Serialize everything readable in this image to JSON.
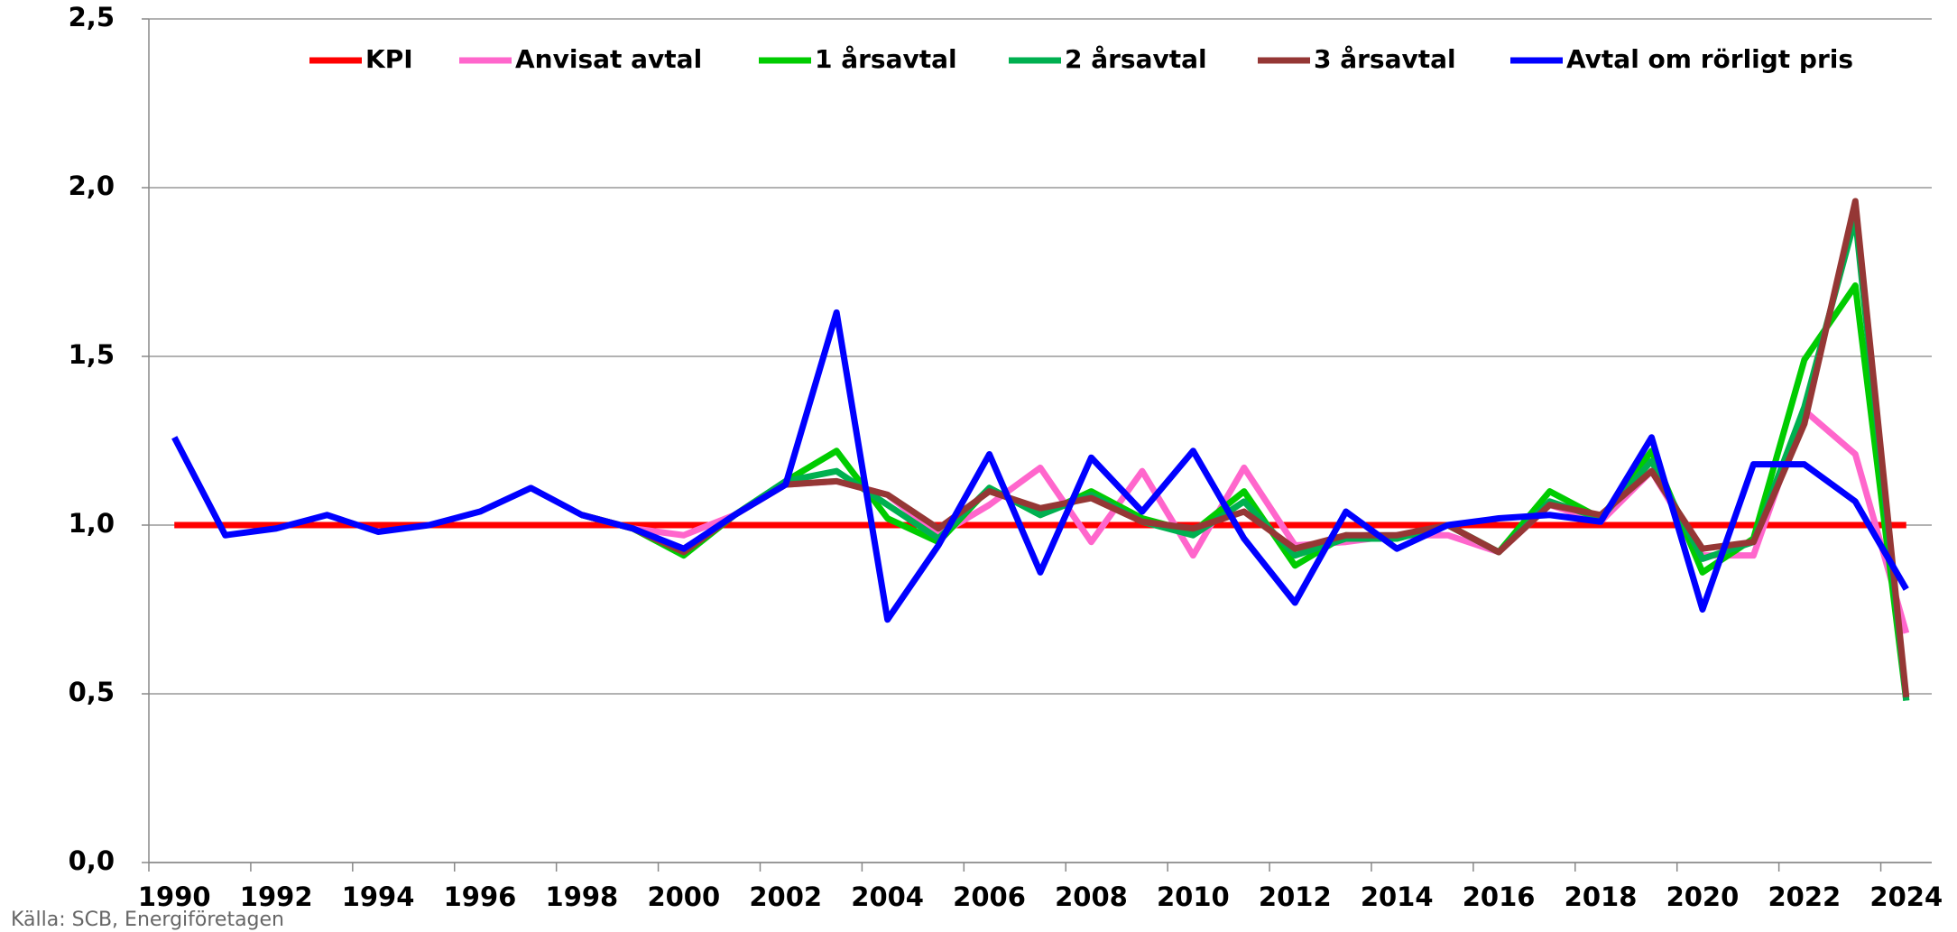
{
  "chart_data": {
    "type": "line",
    "source": "Källa: SCB, Energiföretagen",
    "categories": [
      1990,
      null,
      1992,
      null,
      1994,
      null,
      1996,
      null,
      1998,
      null,
      2000,
      null,
      2002,
      null,
      2004,
      null,
      2006,
      null,
      2008,
      null,
      2010,
      null,
      2012,
      null,
      2014,
      null,
      2016,
      null,
      2018,
      null,
      2020,
      null,
      2022,
      null,
      2024
    ],
    "series": [
      {
        "name": "KPI",
        "color": "#ff0000",
        "values": [
          1.0,
          1.0,
          1.0,
          1.0,
          1.0,
          1.0,
          1.0,
          1.0,
          1.0,
          1.0,
          1.0,
          1.0,
          1.0,
          1.0,
          1.0,
          1.0,
          1.0,
          1.0,
          1.0,
          1.0,
          1.0,
          1.0,
          1.0,
          1.0,
          1.0,
          1.0,
          1.0,
          1.0,
          1.0,
          1.0,
          1.0,
          1.0,
          1.0,
          1.0,
          1.0
        ]
      },
      {
        "name": "Anvisat avtal",
        "color": "#ff66cc",
        "values": [
          null,
          null,
          null,
          null,
          null,
          null,
          null,
          null,
          1.03,
          0.99,
          0.97,
          1.03,
          1.12,
          1.13,
          1.09,
          0.97,
          1.06,
          1.17,
          0.95,
          1.16,
          0.91,
          1.17,
          0.94,
          0.95,
          0.97,
          0.97,
          0.92,
          1.06,
          1.01,
          1.16,
          0.91,
          0.91,
          1.34,
          1.21,
          0.68
        ]
      },
      {
        "name": "1 årsavtal",
        "color": "#00cc00",
        "values": [
          null,
          null,
          null,
          null,
          null,
          null,
          null,
          null,
          1.03,
          0.99,
          0.91,
          1.03,
          1.13,
          1.22,
          1.02,
          0.95,
          1.11,
          1.03,
          1.1,
          1.02,
          0.98,
          1.1,
          0.88,
          0.97,
          0.96,
          1.0,
          0.92,
          1.1,
          1.02,
          1.22,
          0.86,
          0.96,
          1.49,
          1.71,
          0.48
        ]
      },
      {
        "name": "2 årsavtal",
        "color": "#00b050",
        "values": [
          null,
          null,
          null,
          null,
          null,
          null,
          null,
          null,
          1.03,
          0.99,
          0.92,
          1.03,
          1.13,
          1.16,
          1.06,
          0.96,
          1.11,
          1.03,
          1.09,
          1.01,
          0.97,
          1.07,
          0.91,
          0.96,
          0.96,
          1.0,
          0.92,
          1.07,
          1.02,
          1.19,
          0.9,
          0.95,
          1.35,
          1.91,
          0.48
        ]
      },
      {
        "name": "3 årsavtal",
        "color": "#953735",
        "values": [
          null,
          null,
          null,
          null,
          null,
          null,
          null,
          null,
          1.03,
          0.99,
          0.92,
          1.03,
          1.12,
          1.13,
          1.09,
          0.99,
          1.1,
          1.05,
          1.08,
          1.01,
          0.99,
          1.04,
          0.93,
          0.97,
          0.97,
          1.0,
          0.92,
          1.06,
          1.03,
          1.16,
          0.93,
          0.95,
          1.3,
          1.96,
          0.49
        ]
      },
      {
        "name": "Avtal om rörligt pris",
        "color": "#0000ff",
        "values": [
          1.26,
          0.97,
          0.99,
          1.03,
          0.98,
          1.0,
          1.04,
          1.11,
          1.03,
          0.99,
          0.93,
          1.03,
          1.12,
          1.63,
          0.72,
          0.94,
          1.21,
          0.86,
          1.2,
          1.04,
          1.22,
          0.96,
          0.77,
          1.04,
          0.93,
          1.0,
          1.02,
          1.03,
          1.01,
          1.26,
          0.75,
          1.18,
          1.18,
          1.07,
          0.81
        ]
      }
    ],
    "ylim": [
      0,
      2.5
    ],
    "yticks": [
      {
        "value": 0,
        "label": "0,0"
      },
      {
        "value": 0.5,
        "label": "0,5"
      },
      {
        "value": 1,
        "label": "1,0"
      },
      {
        "value": 1.5,
        "label": "1,5"
      },
      {
        "value": 2,
        "label": "2,0"
      },
      {
        "value": 2.5,
        "label": "2,5"
      }
    ],
    "grid": true,
    "legend": "top"
  }
}
